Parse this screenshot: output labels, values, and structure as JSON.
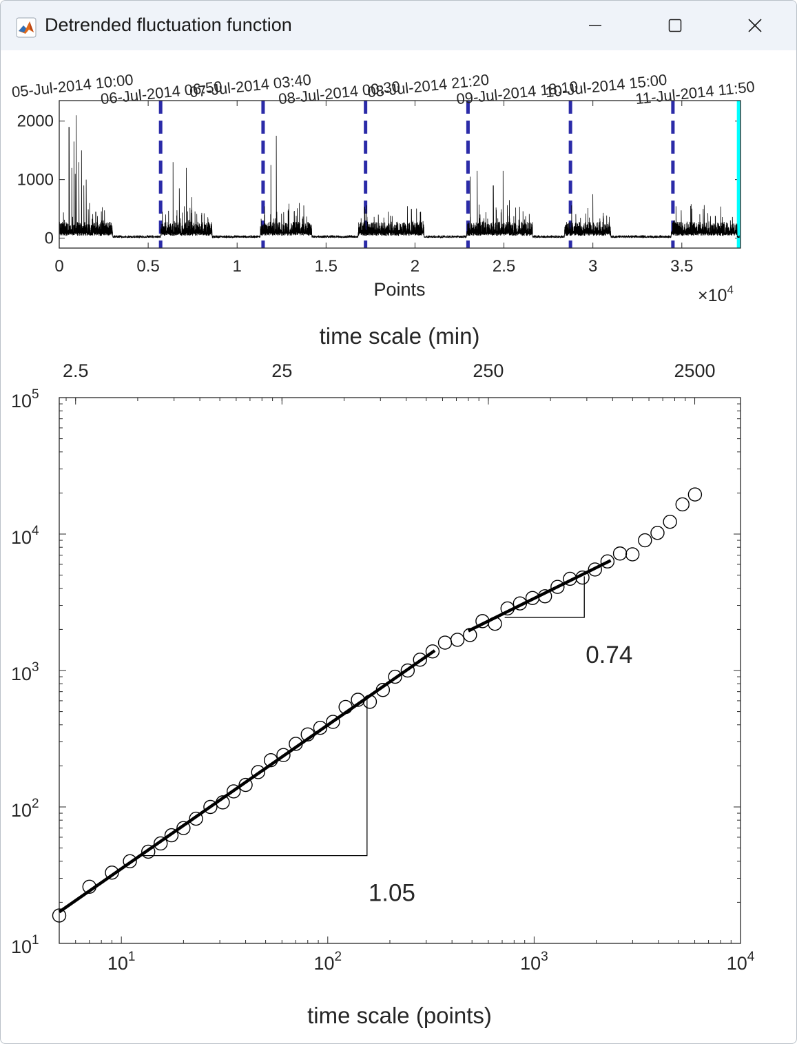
{
  "window": {
    "title": "Detrended fluctuation function",
    "icon": "matlab-icon",
    "controls": [
      "minimize-icon",
      "maximize-icon",
      "close-icon"
    ]
  },
  "chart_data": [
    {
      "type": "line",
      "xlabel": "Points",
      "x_exponent_label": "×10",
      "x_exponent_power": "4",
      "xlim": [
        0,
        38300
      ],
      "ylim": [
        -170,
        2350
      ],
      "x_ticks": [
        0,
        5000,
        10000,
        15000,
        20000,
        25000,
        30000,
        35000
      ],
      "x_tick_labels": [
        "0",
        "0.5",
        "1",
        "1.5",
        "2",
        "2.5",
        "3",
        "3.5"
      ],
      "y_ticks": [
        0,
        1000,
        2000
      ],
      "y_tick_labels": [
        "0",
        "1000",
        "2000"
      ],
      "top_tick_labels": [
        "05-Jul-2014 10:00",
        "06-Jul-2014 06:50",
        "07-Jul-2014 03:40",
        "08-Jul-2014 00:30",
        "08-Jul-2014 21:20",
        "09-Jul-2014 18:10",
        "10-Jul-2014 15:00",
        "11-Jul-2014 11:50"
      ],
      "day_boundaries": [
        5700,
        11460,
        17220,
        22980,
        28740,
        34500
      ],
      "end_marker": 38230,
      "colors": {
        "signal": "#000000",
        "day_boundary": "#2b2ba8",
        "end_marker": "#00ffff"
      },
      "series": [
        {
          "peaks": [
            {
              "x": 550,
              "y": 1900
            },
            {
              "x": 700,
              "y": 1200
            },
            {
              "x": 820,
              "y": 1650
            },
            {
              "x": 900,
              "y": 1100
            },
            {
              "x": 950,
              "y": 2100
            },
            {
              "x": 1100,
              "y": 1300
            },
            {
              "x": 1250,
              "y": 1500
            },
            {
              "x": 1380,
              "y": 900
            },
            {
              "x": 1520,
              "y": 1000
            },
            {
              "x": 1700,
              "y": 600
            },
            {
              "x": 2050,
              "y": 450
            },
            {
              "x": 2400,
              "y": 300
            },
            {
              "x": 6400,
              "y": 1300
            },
            {
              "x": 6750,
              "y": 850
            },
            {
              "x": 7150,
              "y": 1200
            },
            {
              "x": 7450,
              "y": 700
            },
            {
              "x": 8000,
              "y": 400
            },
            {
              "x": 11900,
              "y": 1250
            },
            {
              "x": 12200,
              "y": 1750
            },
            {
              "x": 12900,
              "y": 500
            },
            {
              "x": 13500,
              "y": 600
            },
            {
              "x": 18500,
              "y": 450
            },
            {
              "x": 19800,
              "y": 500
            },
            {
              "x": 23100,
              "y": 1050
            },
            {
              "x": 23500,
              "y": 1150
            },
            {
              "x": 24400,
              "y": 900
            },
            {
              "x": 24950,
              "y": 1150
            },
            {
              "x": 25300,
              "y": 650
            },
            {
              "x": 29600,
              "y": 420
            },
            {
              "x": 30000,
              "y": 750
            },
            {
              "x": 35500,
              "y": 550
            },
            {
              "x": 36200,
              "y": 500
            }
          ]
        }
      ]
    },
    {
      "type": "scatter",
      "xlabel": "time scale (points)",
      "x2label": "time scale (min)",
      "x_scale": "log",
      "y_scale": "log",
      "xlim": [
        5,
        10000
      ],
      "ylim": [
        10,
        100000
      ],
      "x_ticks": [
        10,
        100,
        1000,
        10000
      ],
      "x_tick_bases": [
        "10",
        "10",
        "10",
        "10"
      ],
      "x_tick_powers": [
        "1",
        "2",
        "3",
        "4"
      ],
      "y_ticks": [
        10,
        100,
        1000,
        10000,
        100000
      ],
      "y_tick_bases": [
        "10",
        "10",
        "10",
        "10",
        "10"
      ],
      "y_tick_powers": [
        "1",
        "2",
        "3",
        "4",
        "5"
      ],
      "top_ticks_points": [
        6,
        60,
        600,
        6000
      ],
      "top_tick_labels": [
        "2.5",
        "25",
        "250",
        "2500"
      ],
      "series": [
        {
          "marker": "open-circle",
          "x": [
            5,
            7,
            9,
            11,
            13.5,
            15.5,
            17.5,
            20,
            23,
            27,
            31,
            35,
            40,
            46,
            53,
            61,
            70,
            80,
            92,
            106,
            122,
            140,
            160,
            185,
            212,
            244,
            280,
            322,
            370,
            425,
            489,
            562,
            646,
            743,
            854,
            982,
            1129,
            1298,
            1492,
            1715,
            1972,
            2267,
            2606,
            2996,
            3444,
            3960,
            4553,
            5234,
            6017
          ],
          "y": [
            16,
            26,
            33,
            40,
            47,
            54,
            62,
            70,
            82,
            100,
            108,
            130,
            145,
            180,
            220,
            240,
            290,
            340,
            380,
            420,
            540,
            610,
            590,
            720,
            900,
            1000,
            1200,
            1380,
            1600,
            1680,
            1820,
            2300,
            2200,
            2850,
            3100,
            3400,
            3500,
            4100,
            4700,
            4800,
            5500,
            6300,
            7200,
            7100,
            9000,
            10200,
            12300,
            16500,
            19500
          ]
        },
        {
          "name": "fit-1",
          "x": [
            5,
            330
          ],
          "y": [
            17,
            1400
          ]
        },
        {
          "name": "fit-2",
          "x": [
            480,
            2350
          ],
          "y": [
            1950,
            6400
          ]
        }
      ],
      "slope_annotations": [
        {
          "label": "1.05",
          "corner_x": 12,
          "corner_y": 44,
          "end_x": 155,
          "end_y": 650
        },
        {
          "label": "0.74",
          "corner_x": 720,
          "corner_y": 2450,
          "end_x": 1750,
          "end_y": 4900
        }
      ]
    }
  ]
}
